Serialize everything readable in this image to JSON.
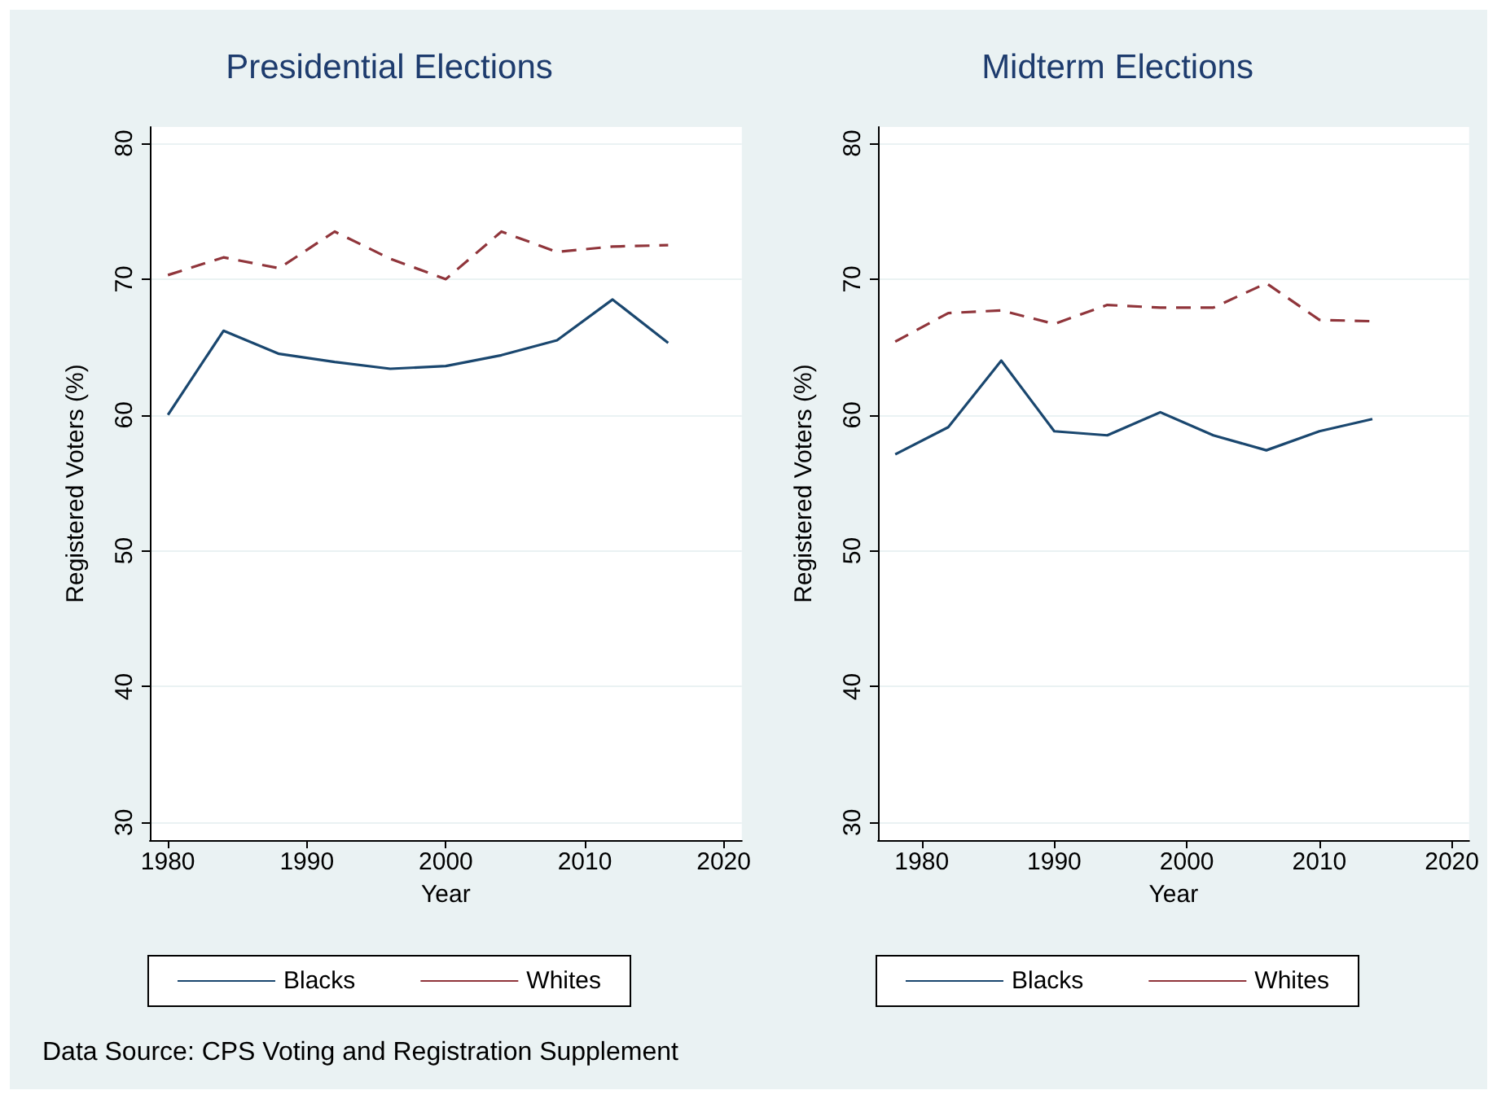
{
  "chart_data": [
    {
      "type": "line",
      "title": "Presidential Elections",
      "xlabel": "Year",
      "ylabel": "Registered Voters (%)",
      "x": [
        1980,
        1984,
        1988,
        1992,
        1996,
        2000,
        2004,
        2008,
        2012,
        2016
      ],
      "series": [
        {
          "name": "Blacks",
          "color": "#1a476f",
          "line_style": "solid",
          "values": [
            60.0,
            66.2,
            64.5,
            63.9,
            63.4,
            63.6,
            64.4,
            65.5,
            68.5,
            65.3
          ]
        },
        {
          "name": "Whites",
          "color": "#90353b",
          "line_style": "dashed",
          "values": [
            70.3,
            71.6,
            70.8,
            73.5,
            71.5,
            70.0,
            73.5,
            72.0,
            72.4,
            72.5
          ]
        }
      ],
      "xlim": [
        1978.7,
        2021.3
      ],
      "xticks": [
        1980,
        1990,
        2000,
        2010,
        2020
      ],
      "ylim": [
        28.7,
        81.2
      ],
      "yticks": [
        30,
        40,
        50,
        60,
        70,
        80
      ],
      "grid": "y",
      "legend": "bottom",
      "marker": "none",
      "annotations": [
        "Data Source: CPS Voting and Registration Supplement"
      ]
    },
    {
      "type": "line",
      "title": "Midterm Elections",
      "xlabel": "Year",
      "ylabel": "Registered Voters (%)",
      "x": [
        1978,
        1982,
        1986,
        1990,
        1994,
        1998,
        2002,
        2006,
        2010,
        2014
      ],
      "series": [
        {
          "name": "Blacks",
          "color": "#1a476f",
          "line_style": "solid",
          "values": [
            57.1,
            59.1,
            64.0,
            58.8,
            58.5,
            60.2,
            58.5,
            57.4,
            58.8,
            59.7
          ]
        },
        {
          "name": "Whites",
          "color": "#90353b",
          "line_style": "dashed",
          "values": [
            65.4,
            67.5,
            67.7,
            66.7,
            68.1,
            67.9,
            67.9,
            69.7,
            67.0,
            66.9
          ]
        }
      ],
      "xlim": [
        1976.7,
        2021.3
      ],
      "xticks": [
        1980,
        1990,
        2000,
        2010,
        2020
      ],
      "ylim": [
        28.7,
        81.2
      ],
      "yticks": [
        30,
        40,
        50,
        60,
        70,
        80
      ],
      "grid": "y",
      "legend": "bottom",
      "marker": "none"
    }
  ]
}
